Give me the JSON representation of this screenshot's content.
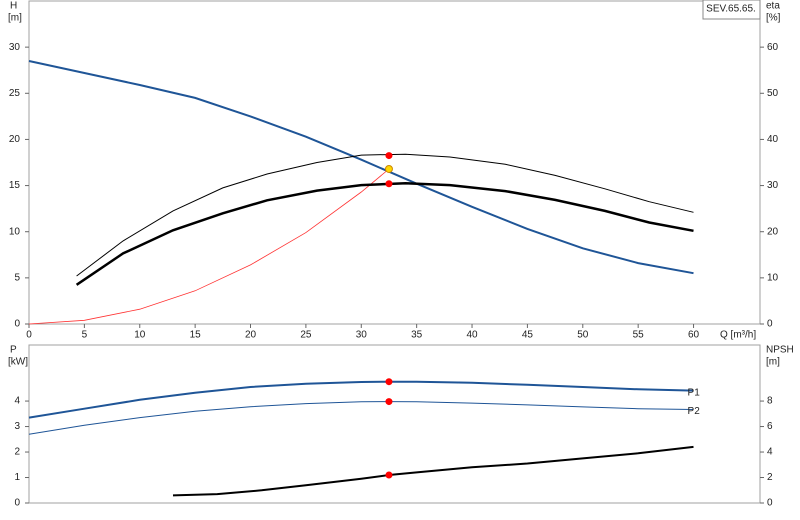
{
  "chart_data": [
    {
      "type": "line",
      "title": "SEV.65.65.",
      "xlabel": "Q [m³/h]",
      "ylabel": "H",
      "yunit": "[m]",
      "y2label": "eta",
      "y2unit": "[%]",
      "xlim": [
        0,
        66
      ],
      "xticks": [
        0,
        5,
        10,
        15,
        20,
        25,
        30,
        35,
        40,
        45,
        50,
        55,
        60
      ],
      "ylim": [
        0,
        35
      ],
      "yticks": [
        0,
        5,
        10,
        15,
        20,
        25,
        30
      ],
      "y2lim": [
        0,
        70
      ],
      "y2ticks": [
        0,
        10,
        20,
        30,
        40,
        50,
        60
      ],
      "series": [
        {
          "color": "#1f5597",
          "width": 2,
          "x": [
            0,
            5,
            10,
            15,
            20,
            25,
            30,
            32.5,
            35,
            40,
            45,
            50,
            55,
            60
          ],
          "values": [
            28.5,
            27.2,
            25.9,
            24.5,
            22.5,
            20.3,
            17.8,
            16.5,
            15.2,
            12.7,
            10.3,
            8.2,
            6.6,
            5.5
          ]
        },
        {
          "color": "#ff3333",
          "width": 0.8,
          "x": [
            0,
            5,
            10,
            15,
            20,
            25,
            30,
            32.5
          ],
          "values": [
            0,
            0.4,
            1.6,
            3.6,
            6.4,
            9.9,
            14.3,
            16.8
          ],
          "marker": {
            "x": 32.5,
            "value": 16.8,
            "color": "#ffd700"
          }
        },
        {
          "color": "#000000",
          "width": 1,
          "axis": "y2",
          "x": [
            4.3,
            8.5,
            13,
            17.5,
            21.5,
            26,
            30,
            34,
            38,
            43,
            47.5,
            52,
            56,
            60
          ],
          "values": [
            10.4,
            18,
            24.5,
            29.5,
            32.5,
            35,
            36.6,
            36.8,
            36.2,
            34.6,
            32.2,
            29.3,
            26.5,
            24.2
          ],
          "marker": {
            "x": 32.5,
            "value": 36.5,
            "color": "#ff0000"
          }
        },
        {
          "color": "#000000",
          "width": 2.5,
          "axis": "y2",
          "x": [
            4.3,
            8.5,
            13,
            17.5,
            21.5,
            26,
            30,
            34,
            38,
            43,
            47.5,
            52,
            56,
            60
          ],
          "values": [
            8.5,
            15.3,
            20.3,
            24,
            26.8,
            28.9,
            30.1,
            30.5,
            30.1,
            28.8,
            26.9,
            24.5,
            22,
            20.2
          ],
          "marker": {
            "x": 32.5,
            "value": 30.4,
            "color": "#ff0000"
          }
        }
      ]
    },
    {
      "type": "line",
      "ylabel": "P",
      "yunit": "[kW]",
      "y2label": "NPSH",
      "y2unit": "[m]",
      "xlim": [
        0,
        66
      ],
      "ylim": [
        0,
        6.2
      ],
      "yticks": [
        0,
        1,
        2,
        3,
        4
      ],
      "y2lim": [
        0,
        12.4
      ],
      "y2ticks": [
        0,
        2,
        4,
        6,
        8
      ],
      "series": [
        {
          "name": "P1",
          "color": "#1f5597",
          "width": 2,
          "x": [
            0,
            5,
            10,
            15,
            20,
            25,
            30,
            32.5,
            35,
            40,
            45,
            50,
            55,
            60
          ],
          "values": [
            3.35,
            3.7,
            4.05,
            4.33,
            4.55,
            4.68,
            4.75,
            4.76,
            4.76,
            4.72,
            4.64,
            4.55,
            4.46,
            4.41
          ],
          "marker": {
            "x": 32.5,
            "value": 4.76,
            "color": "#ff0000"
          }
        },
        {
          "name": "P2",
          "color": "#1f5597",
          "width": 1,
          "x": [
            0,
            5,
            10,
            15,
            20,
            25,
            30,
            32.5,
            35,
            40,
            45,
            50,
            55,
            60
          ],
          "values": [
            2.7,
            3.05,
            3.35,
            3.6,
            3.78,
            3.9,
            3.97,
            3.98,
            3.97,
            3.92,
            3.85,
            3.77,
            3.7,
            3.67
          ],
          "marker": {
            "x": 32.5,
            "value": 3.98,
            "color": "#ff0000"
          }
        },
        {
          "color": "#000000",
          "width": 2,
          "axis": "y2",
          "x": [
            13,
            17,
            21,
            25,
            30,
            32.5,
            35,
            40,
            45,
            50,
            55,
            60
          ],
          "values": [
            0.6,
            0.7,
            1.0,
            1.4,
            1.9,
            2.2,
            2.4,
            2.8,
            3.1,
            3.5,
            3.9,
            4.4
          ],
          "marker": {
            "x": 32.5,
            "value": 2.2,
            "color": "#ff0000"
          }
        }
      ]
    }
  ]
}
